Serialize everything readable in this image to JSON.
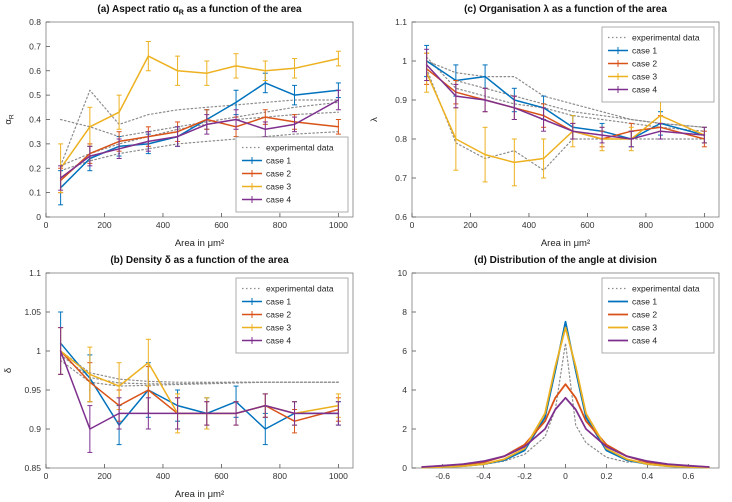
{
  "figure": {
    "background": "#ffffff"
  },
  "colors": {
    "case1": "#0072BD",
    "case2": "#D95319",
    "case3": "#EDB120",
    "case4": "#7E2F8E",
    "experimental": "#8c8c8c"
  },
  "chart_data": [
    {
      "id": "a",
      "type": "line",
      "title": "(a) Aspect ratio α_R as a function of the area",
      "xlabel": "Area in μm²",
      "ylabel": "α_R",
      "xlim": [
        0,
        1050
      ],
      "ylim": [
        0,
        0.8
      ],
      "xticks": [
        0,
        200,
        400,
        600,
        800,
        1000
      ],
      "xtick_labels": [
        "0",
        "200",
        "400",
        "600",
        "800",
        "1000"
      ],
      "yticks": [
        0,
        0.1,
        0.2,
        0.3,
        0.4,
        0.5,
        0.6,
        0.7,
        0.8
      ],
      "ytick_labels": [
        "0",
        "0.1",
        "0.2",
        "0.3",
        "0.4",
        "0.5",
        "0.6",
        "0.7",
        "0.8"
      ],
      "legend": "se",
      "grid": false,
      "x": [
        50,
        150,
        250,
        350,
        450,
        550,
        650,
        750,
        850,
        1000
      ],
      "series": [
        {
          "name": "experimental data",
          "color": "#8c8c8c",
          "dash": "1.5,2.5",
          "lw": 1.2,
          "in_legend": true,
          "values": [
            0.21,
            0.52,
            0.38,
            0.42,
            0.44,
            0.45,
            0.46,
            0.47,
            0.48,
            0.48
          ]
        },
        {
          "name": "experimental data 2",
          "color": "#8c8c8c",
          "dash": "1.5,2.5",
          "lw": 1.2,
          "in_legend": false,
          "values": [
            0.4,
            0.37,
            0.33,
            0.35,
            0.37,
            0.39,
            0.41,
            0.43,
            0.45,
            0.47
          ]
        },
        {
          "name": "experimental data 3",
          "color": "#8c8c8c",
          "dash": "1.5,2.5",
          "lw": 1.2,
          "in_legend": false,
          "values": [
            0.19,
            0.23,
            0.26,
            0.28,
            0.3,
            0.31,
            0.32,
            0.33,
            0.34,
            0.35
          ]
        },
        {
          "name": "experimental data 4",
          "color": "#8c8c8c",
          "dash": "1.5,2.5",
          "lw": 1.2,
          "in_legend": false,
          "values": [
            0.21,
            0.26,
            0.3,
            0.33,
            0.36,
            0.38,
            0.4,
            0.41,
            0.42,
            0.43
          ]
        },
        {
          "name": "case 1",
          "color": "#0072BD",
          "lw": 1.5,
          "in_legend": true,
          "values": [
            0.12,
            0.24,
            0.29,
            0.3,
            0.33,
            0.4,
            0.47,
            0.55,
            0.5,
            0.52
          ],
          "err": [
            0.07,
            0.05,
            0.04,
            0.04,
            0.04,
            0.04,
            0.05,
            0.04,
            0.04,
            0.03
          ]
        },
        {
          "name": "case 2",
          "color": "#D95319",
          "lw": 1.5,
          "in_legend": true,
          "values": [
            0.15,
            0.26,
            0.31,
            0.33,
            0.35,
            0.4,
            0.37,
            0.41,
            0.39,
            0.37
          ],
          "err": [
            0.05,
            0.04,
            0.04,
            0.04,
            0.04,
            0.04,
            0.04,
            0.03,
            0.03,
            0.03
          ]
        },
        {
          "name": "case 3",
          "color": "#EDB120",
          "lw": 1.5,
          "in_legend": true,
          "values": [
            0.2,
            0.37,
            0.43,
            0.66,
            0.6,
            0.59,
            0.62,
            0.6,
            0.61,
            0.65
          ],
          "err": [
            0.1,
            0.08,
            0.07,
            0.06,
            0.06,
            0.05,
            0.05,
            0.04,
            0.04,
            0.03
          ]
        },
        {
          "name": "case 4",
          "color": "#7E2F8E",
          "lw": 1.5,
          "in_legend": true,
          "values": [
            0.16,
            0.25,
            0.28,
            0.31,
            0.33,
            0.38,
            0.4,
            0.36,
            0.38,
            0.48
          ],
          "err": [
            0.05,
            0.04,
            0.04,
            0.04,
            0.04,
            0.04,
            0.04,
            0.03,
            0.03,
            0.04
          ]
        }
      ]
    },
    {
      "id": "c",
      "type": "line",
      "title": "(c) Organisation λ as a function of the area",
      "xlabel": "Area in μm²",
      "ylabel": "λ",
      "xlim": [
        0,
        1050
      ],
      "ylim": [
        0.6,
        1.1
      ],
      "xticks": [
        0,
        200,
        400,
        600,
        800,
        1000
      ],
      "xtick_labels": [
        "0",
        "200",
        "400",
        "600",
        "800",
        "1000"
      ],
      "yticks": [
        0.6,
        0.7,
        0.8,
        0.9,
        1.0,
        1.1
      ],
      "ytick_labels": [
        "0.6",
        "0.7",
        "0.8",
        "0.9",
        "1",
        "1.1"
      ],
      "legend": "ne",
      "grid": false,
      "x": [
        50,
        150,
        250,
        350,
        450,
        550,
        650,
        750,
        850,
        1000
      ],
      "series": [
        {
          "name": "experimental data",
          "color": "#8c8c8c",
          "dash": "1.5,2.5",
          "lw": 1.2,
          "in_legend": true,
          "values": [
            1.0,
            0.97,
            0.96,
            0.96,
            0.91,
            0.89,
            0.87,
            0.85,
            0.84,
            0.83
          ]
        },
        {
          "name": "experimental data 2",
          "color": "#8c8c8c",
          "dash": "1.5,2.5",
          "lw": 1.2,
          "in_legend": false,
          "values": [
            1.01,
            0.93,
            0.91,
            0.89,
            0.88,
            0.86,
            0.85,
            0.84,
            0.83,
            0.82
          ]
        },
        {
          "name": "experimental data 3",
          "color": "#8c8c8c",
          "dash": "1.5,2.5",
          "lw": 1.2,
          "in_legend": false,
          "values": [
            0.98,
            0.79,
            0.75,
            0.77,
            0.72,
            0.8,
            0.8,
            0.8,
            0.8,
            0.8
          ]
        },
        {
          "name": "experimental data 4",
          "color": "#8c8c8c",
          "dash": "1.5,2.5",
          "lw": 1.2,
          "in_legend": false,
          "values": [
            1.0,
            0.95,
            0.93,
            0.91,
            0.89,
            0.87,
            0.86,
            0.85,
            0.84,
            0.83
          ]
        },
        {
          "name": "case 1",
          "color": "#0072BD",
          "lw": 1.5,
          "in_legend": true,
          "values": [
            1.0,
            0.95,
            0.96,
            0.9,
            0.88,
            0.83,
            0.82,
            0.8,
            0.84,
            0.81
          ],
          "err": [
            0.04,
            0.04,
            0.03,
            0.03,
            0.03,
            0.03,
            0.02,
            0.02,
            0.03,
            0.02
          ]
        },
        {
          "name": "case 2",
          "color": "#D95319",
          "lw": 1.5,
          "in_legend": true,
          "values": [
            0.98,
            0.92,
            0.9,
            0.88,
            0.86,
            0.82,
            0.8,
            0.82,
            0.83,
            0.8
          ],
          "err": [
            0.04,
            0.03,
            0.03,
            0.03,
            0.03,
            0.02,
            0.02,
            0.02,
            0.03,
            0.02
          ]
        },
        {
          "name": "case 3",
          "color": "#EDB120",
          "lw": 1.5,
          "in_legend": true,
          "values": [
            0.97,
            0.8,
            0.76,
            0.74,
            0.75,
            0.82,
            0.8,
            0.8,
            0.86,
            0.81
          ],
          "err": [
            0.05,
            0.08,
            0.07,
            0.06,
            0.05,
            0.04,
            0.03,
            0.03,
            0.04,
            0.02
          ]
        },
        {
          "name": "case 4",
          "color": "#7E2F8E",
          "lw": 1.5,
          "in_legend": true,
          "values": [
            0.99,
            0.91,
            0.9,
            0.88,
            0.85,
            0.82,
            0.81,
            0.8,
            0.82,
            0.81
          ],
          "err": [
            0.04,
            0.03,
            0.03,
            0.03,
            0.03,
            0.02,
            0.02,
            0.02,
            0.02,
            0.02
          ]
        }
      ]
    },
    {
      "id": "b",
      "type": "line",
      "title": "(b) Density δ as a function of the area",
      "xlabel": "Area in μm²",
      "ylabel": "δ",
      "xlim": [
        0,
        1050
      ],
      "ylim": [
        0.85,
        1.1
      ],
      "xticks": [
        0,
        200,
        400,
        600,
        800,
        1000
      ],
      "xtick_labels": [
        "0",
        "200",
        "400",
        "600",
        "800",
        "1000"
      ],
      "yticks": [
        0.85,
        0.9,
        0.95,
        1.0,
        1.05,
        1.1
      ],
      "ytick_labels": [
        "0.85",
        "0.9",
        "0.95",
        "1",
        "1.05",
        "1.1"
      ],
      "legend": "ne",
      "grid": false,
      "x": [
        50,
        150,
        250,
        350,
        450,
        550,
        650,
        750,
        850,
        1000
      ],
      "series": [
        {
          "name": "experimental data",
          "color": "#8c8c8c",
          "dash": "1.5,2.5",
          "lw": 1.2,
          "in_legend": true,
          "values": [
            1.0,
            0.972,
            0.964,
            0.961,
            0.96,
            0.96,
            0.96,
            0.96,
            0.96,
            0.96
          ]
        },
        {
          "name": "experimental data 2",
          "color": "#8c8c8c",
          "dash": "1.5,2.5",
          "lw": 1.2,
          "in_legend": false,
          "values": [
            0.995,
            0.966,
            0.959,
            0.958,
            0.958,
            0.959,
            0.96,
            0.96,
            0.96,
            0.96
          ]
        },
        {
          "name": "experimental data 3",
          "color": "#8c8c8c",
          "dash": "1.5,2.5",
          "lw": 1.2,
          "in_legend": false,
          "values": [
            0.988,
            0.96,
            0.955,
            0.956,
            0.957,
            0.958,
            0.959,
            0.96,
            0.96,
            0.96
          ]
        },
        {
          "name": "case 1",
          "color": "#0072BD",
          "lw": 1.5,
          "in_legend": true,
          "values": [
            1.01,
            0.965,
            0.905,
            0.95,
            0.93,
            0.92,
            0.935,
            0.9,
            0.92,
            0.92
          ],
          "err": [
            0.04,
            0.03,
            0.025,
            0.035,
            0.02,
            0.02,
            0.02,
            0.02,
            0.015,
            0.015
          ]
        },
        {
          "name": "case 2",
          "color": "#D95319",
          "lw": 1.5,
          "in_legend": true,
          "values": [
            1.0,
            0.96,
            0.93,
            0.95,
            0.92,
            0.92,
            0.92,
            0.93,
            0.91,
            0.925
          ],
          "err": [
            0.03,
            0.025,
            0.02,
            0.03,
            0.02,
            0.015,
            0.015,
            0.015,
            0.015,
            0.015
          ]
        },
        {
          "name": "case 3",
          "color": "#EDB120",
          "lw": 1.5,
          "in_legend": true,
          "values": [
            1.0,
            0.97,
            0.955,
            0.985,
            0.92,
            0.92,
            0.92,
            0.93,
            0.92,
            0.93
          ],
          "err": [
            0.03,
            0.035,
            0.03,
            0.03,
            0.025,
            0.02,
            0.015,
            0.015,
            0.015,
            0.015
          ]
        },
        {
          "name": "case 4",
          "color": "#7E2F8E",
          "lw": 1.5,
          "in_legend": true,
          "values": [
            1.0,
            0.9,
            0.92,
            0.92,
            0.92,
            0.92,
            0.92,
            0.93,
            0.92,
            0.92
          ],
          "err": [
            0.03,
            0.03,
            0.02,
            0.02,
            0.02,
            0.015,
            0.015,
            0.015,
            0.015,
            0.015
          ]
        }
      ]
    },
    {
      "id": "d",
      "type": "line",
      "title": "(d) Distribution of the angle at division",
      "xlabel": "",
      "ylabel": "",
      "xlim": [
        -0.75,
        0.75
      ],
      "ylim": [
        0,
        10
      ],
      "xticks": [
        -0.6,
        -0.4,
        -0.2,
        0,
        0.2,
        0.4,
        0.6
      ],
      "xtick_labels": [
        "-0.6",
        "-0.4",
        "-0.2",
        "0",
        "0.2",
        "0.4",
        "0.6"
      ],
      "yticks": [
        0,
        2,
        4,
        6,
        8,
        10
      ],
      "ytick_labels": [
        "0",
        "2",
        "4",
        "6",
        "8",
        "10"
      ],
      "legend": "ne",
      "grid": false,
      "x": [
        -0.7,
        -0.6,
        -0.5,
        -0.4,
        -0.3,
        -0.2,
        -0.1,
        -0.05,
        0,
        0.05,
        0.1,
        0.2,
        0.3,
        0.4,
        0.5,
        0.6,
        0.7
      ],
      "series": [
        {
          "name": "experimental data",
          "color": "#8c8c8c",
          "dash": "1.5,2.5",
          "lw": 1.2,
          "in_legend": true,
          "values": [
            0.02,
            0.06,
            0.1,
            0.18,
            0.35,
            0.7,
            1.6,
            3.0,
            6.4,
            2.2,
            1.3,
            0.55,
            0.3,
            0.35,
            0.1,
            0.06,
            0.02
          ]
        },
        {
          "name": "case 1",
          "color": "#0072BD",
          "lw": 1.8,
          "in_legend": true,
          "values": [
            0.02,
            0.05,
            0.1,
            0.2,
            0.4,
            0.9,
            2.6,
            5.0,
            7.5,
            5.0,
            2.6,
            0.9,
            0.4,
            0.2,
            0.1,
            0.05,
            0.02
          ]
        },
        {
          "name": "case 2",
          "color": "#D95319",
          "lw": 1.8,
          "in_legend": true,
          "values": [
            0.05,
            0.1,
            0.18,
            0.3,
            0.6,
            1.2,
            2.4,
            3.6,
            4.3,
            3.6,
            2.4,
            1.2,
            0.6,
            0.3,
            0.18,
            0.1,
            0.05
          ]
        },
        {
          "name": "case 3",
          "color": "#EDB120",
          "lw": 1.8,
          "in_legend": true,
          "values": [
            0.02,
            0.05,
            0.1,
            0.2,
            0.45,
            1.0,
            2.8,
            5.2,
            7.2,
            5.2,
            2.8,
            1.0,
            0.45,
            0.2,
            0.1,
            0.05,
            0.02
          ]
        },
        {
          "name": "case 4",
          "color": "#7E2F8E",
          "lw": 1.8,
          "in_legend": true,
          "values": [
            0.05,
            0.12,
            0.2,
            0.35,
            0.6,
            1.1,
            2.0,
            3.0,
            3.6,
            3.0,
            2.0,
            1.1,
            0.6,
            0.35,
            0.2,
            0.12,
            0.05
          ]
        }
      ]
    }
  ]
}
